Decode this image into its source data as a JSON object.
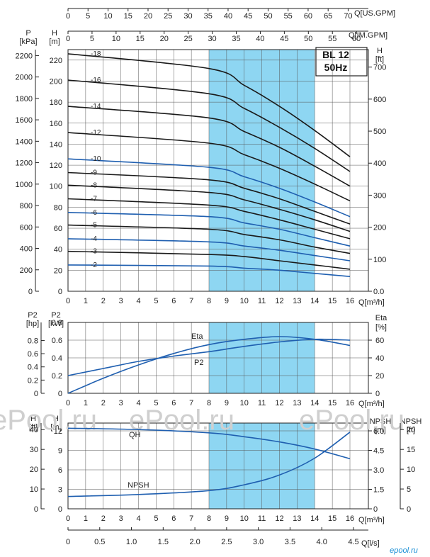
{
  "chart_data": [
    {
      "type": "line",
      "title": "BL 12",
      "subtitle": "50Hz",
      "xlabel": "Q[m³/h]",
      "x_ticks": [
        "0",
        "1",
        "2",
        "3",
        "4",
        "5",
        "6",
        "7",
        "8",
        "9",
        "10",
        "11",
        "12",
        "13",
        "14",
        "15",
        "16"
      ],
      "top_axis_1": {
        "label": "Q[US.GPM]",
        "ticks": [
          "0",
          "5",
          "10",
          "15",
          "20",
          "25",
          "30",
          "35",
          "40",
          "45",
          "50",
          "55",
          "60",
          "65",
          "70"
        ]
      },
      "top_axis_2": {
        "label": "Q[IM.GPM]",
        "ticks": [
          "0",
          "5",
          "10",
          "15",
          "20",
          "25",
          "30",
          "35",
          "40",
          "45",
          "50",
          "55",
          "60"
        ]
      },
      "left_axis_p": {
        "label": "P",
        "unit": "[kPa]",
        "ticks": [
          "0",
          "200",
          "400",
          "600",
          "800",
          "1000",
          "1200",
          "1400",
          "1600",
          "1800",
          "2000",
          "2200"
        ]
      },
      "left_axis_h": {
        "label": "H",
        "unit": "[m]",
        "ticks": [
          "0",
          "20",
          "40",
          "60",
          "80",
          "100",
          "120",
          "140",
          "160",
          "180",
          "200",
          "220"
        ]
      },
      "right_axis": {
        "label": "H",
        "unit": "[ft]",
        "ticks": [
          "0.0",
          "100",
          "200",
          "300",
          "400",
          "500",
          "600",
          "700"
        ]
      },
      "ylim": [
        0,
        230
      ],
      "xlim": [
        0,
        16
      ],
      "highlight_range": [
        8,
        14
      ],
      "series": [
        {
          "name": "-18",
          "x": [
            0,
            8,
            10,
            12,
            14,
            16
          ],
          "y": [
            226,
            212,
            196,
            176,
            153,
            128
          ]
        },
        {
          "name": "-16",
          "x": [
            0,
            8,
            10,
            12,
            14,
            16
          ],
          "y": [
            201,
            188,
            174,
            156,
            136,
            114
          ]
        },
        {
          "name": "-14",
          "x": [
            0,
            8,
            10,
            12,
            14,
            16
          ],
          "y": [
            176,
            165,
            152,
            137,
            119,
            100
          ]
        },
        {
          "name": "-12",
          "x": [
            0,
            8,
            10,
            12,
            14,
            16
          ],
          "y": [
            151,
            141,
            130,
            117,
            102,
            86
          ]
        },
        {
          "name": "-10",
          "x": [
            0,
            8,
            10,
            12,
            14,
            16
          ],
          "y": [
            126,
            118,
            109,
            98,
            85,
            71
          ]
        },
        {
          "name": "-9",
          "x": [
            0,
            8,
            10,
            12,
            14,
            16
          ],
          "y": [
            113,
            106,
            98,
            88,
            76,
            64
          ]
        },
        {
          "name": "-8",
          "x": [
            0,
            8,
            10,
            12,
            14,
            16
          ],
          "y": [
            101,
            94,
            87,
            78,
            68,
            57
          ]
        },
        {
          "name": "-7",
          "x": [
            0,
            8,
            10,
            12,
            14,
            16
          ],
          "y": [
            88,
            82,
            76,
            68,
            59,
            50
          ]
        },
        {
          "name": "-6",
          "x": [
            0,
            8,
            10,
            12,
            14,
            16
          ],
          "y": [
            75,
            71,
            65,
            59,
            51,
            43
          ]
        },
        {
          "name": "-5",
          "x": [
            0,
            8,
            10,
            12,
            14,
            16
          ],
          "y": [
            63,
            59,
            54,
            49,
            42,
            36
          ]
        },
        {
          "name": "-4",
          "x": [
            0,
            8,
            10,
            12,
            14,
            16
          ],
          "y": [
            50,
            47,
            43,
            39,
            34,
            29
          ]
        },
        {
          "name": "-3",
          "x": [
            0,
            8,
            10,
            12,
            14,
            16
          ],
          "y": [
            38,
            35,
            33,
            29,
            25,
            21
          ]
        },
        {
          "name": "-2",
          "x": [
            0,
            8,
            10,
            12,
            14,
            16
          ],
          "y": [
            25,
            24,
            22,
            20,
            17,
            14
          ]
        }
      ]
    },
    {
      "type": "line",
      "xlabel": "Q[m³/h]",
      "x_ticks": [
        "0",
        "1",
        "2",
        "3",
        "4",
        "5",
        "6",
        "7",
        "8",
        "9",
        "10",
        "11",
        "12",
        "13",
        "14",
        "15",
        "16"
      ],
      "left_axis_hp": {
        "label": "P2",
        "unit": "[hp]",
        "ticks": [
          "0",
          "0.2",
          "0.4",
          "0.6",
          "0.8"
        ]
      },
      "left_axis_kw": {
        "label": "P2",
        "unit": "[kW]",
        "ticks": [
          "0",
          "0.2",
          "0.4",
          "0.6",
          "0.8"
        ]
      },
      "right_axis": {
        "label": "Eta",
        "unit": "[%]",
        "ticks": [
          "0",
          "20",
          "40",
          "60"
        ]
      },
      "highlight_range": [
        8,
        14
      ],
      "series": [
        {
          "name": "Eta",
          "x": [
            0,
            2,
            4,
            6,
            8,
            10,
            12,
            14,
            16
          ],
          "y": [
            0,
            17,
            32,
            45,
            55,
            61,
            64,
            61,
            54
          ]
        },
        {
          "name": "P2",
          "x": [
            0,
            2,
            4,
            6,
            8,
            10,
            12,
            14,
            16
          ],
          "y": [
            20,
            28,
            36,
            42,
            47,
            53,
            58,
            61,
            60
          ]
        }
      ]
    },
    {
      "type": "line",
      "watermark": [
        "ePool.ru",
        "ePool.ru",
        "ePool.ru"
      ],
      "xlabel": "Q[m³/h]",
      "xlabel2": "Q[l/s]",
      "x_ticks": [
        "0",
        "1",
        "2",
        "3",
        "4",
        "5",
        "6",
        "7",
        "8",
        "9",
        "10",
        "11",
        "12",
        "13",
        "14",
        "15",
        "16"
      ],
      "x2_ticks": [
        "0",
        "0.5",
        "1.0",
        "1.5",
        "2.0",
        "2.5",
        "3.0",
        "3.5",
        "4.0",
        "4.5"
      ],
      "left_axis_ft": {
        "label": "H",
        "unit": "[ft]",
        "ticks": [
          "0",
          "10",
          "20",
          "30",
          "40"
        ]
      },
      "left_axis_m": {
        "label": "H",
        "unit": "[m]",
        "ticks": [
          "0",
          "3",
          "6",
          "9",
          "12"
        ]
      },
      "right_axis_m": {
        "label": "NPSH",
        "unit": "[m]",
        "ticks": [
          "0",
          "1.5",
          "3.0",
          "4.5",
          "6.0"
        ]
      },
      "right_axis_ft": {
        "label": "NPSH",
        "unit": "[ft]",
        "ticks": [
          "0",
          "5",
          "10",
          "15",
          "20"
        ]
      },
      "highlight_range": [
        8,
        14
      ],
      "series": [
        {
          "name": "QH",
          "x": [
            0,
            4,
            8,
            10,
            12,
            14,
            16
          ],
          "y": [
            12.4,
            12.2,
            11.7,
            11.1,
            10.3,
            9.2,
            7.7
          ]
        },
        {
          "name": "NPSH",
          "x": [
            0,
            4,
            8,
            10,
            12,
            14,
            16
          ],
          "y": [
            0.95,
            1.1,
            1.4,
            1.85,
            2.6,
            3.9,
            5.9
          ]
        }
      ]
    }
  ],
  "footer_logo": "epool.ru"
}
